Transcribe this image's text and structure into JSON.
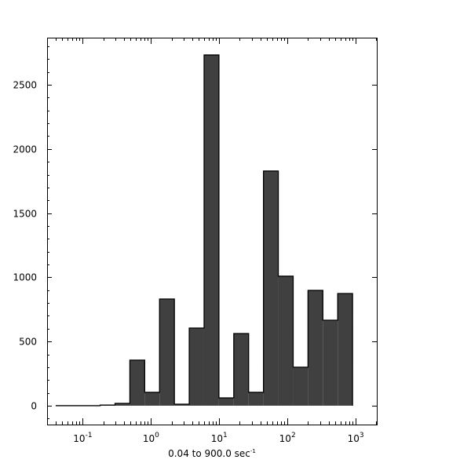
{
  "chart_data": {
    "type": "bar",
    "subtype": "histogram",
    "x_scale": "log",
    "bin_range": [
      0.04,
      900.0
    ],
    "bin_count": 20,
    "values": [
      0,
      0,
      0,
      5,
      18,
      355,
      104,
      831,
      12,
      605,
      2732,
      61,
      562,
      104,
      1828,
      1009,
      300,
      898,
      666,
      874
    ],
    "xlabel": "0.04 to 900.0 sec",
    "xlabel_superscript": "-1",
    "xlim": [
      0.03,
      2040
    ],
    "ylim": [
      -147,
      2867
    ],
    "yticks": [
      0,
      500,
      1000,
      1500,
      2000,
      2500
    ],
    "xticks": [
      {
        "base": "10",
        "exp": "-1",
        "value": 0.1
      },
      {
        "base": "10",
        "exp": "0",
        "value": 1
      },
      {
        "base": "10",
        "exp": "1",
        "value": 10
      },
      {
        "base": "10",
        "exp": "2",
        "value": 100
      },
      {
        "base": "10",
        "exp": "3",
        "value": 1000
      }
    ],
    "grid": false,
    "bar_color": "#404040",
    "edge_color": "#000000"
  }
}
